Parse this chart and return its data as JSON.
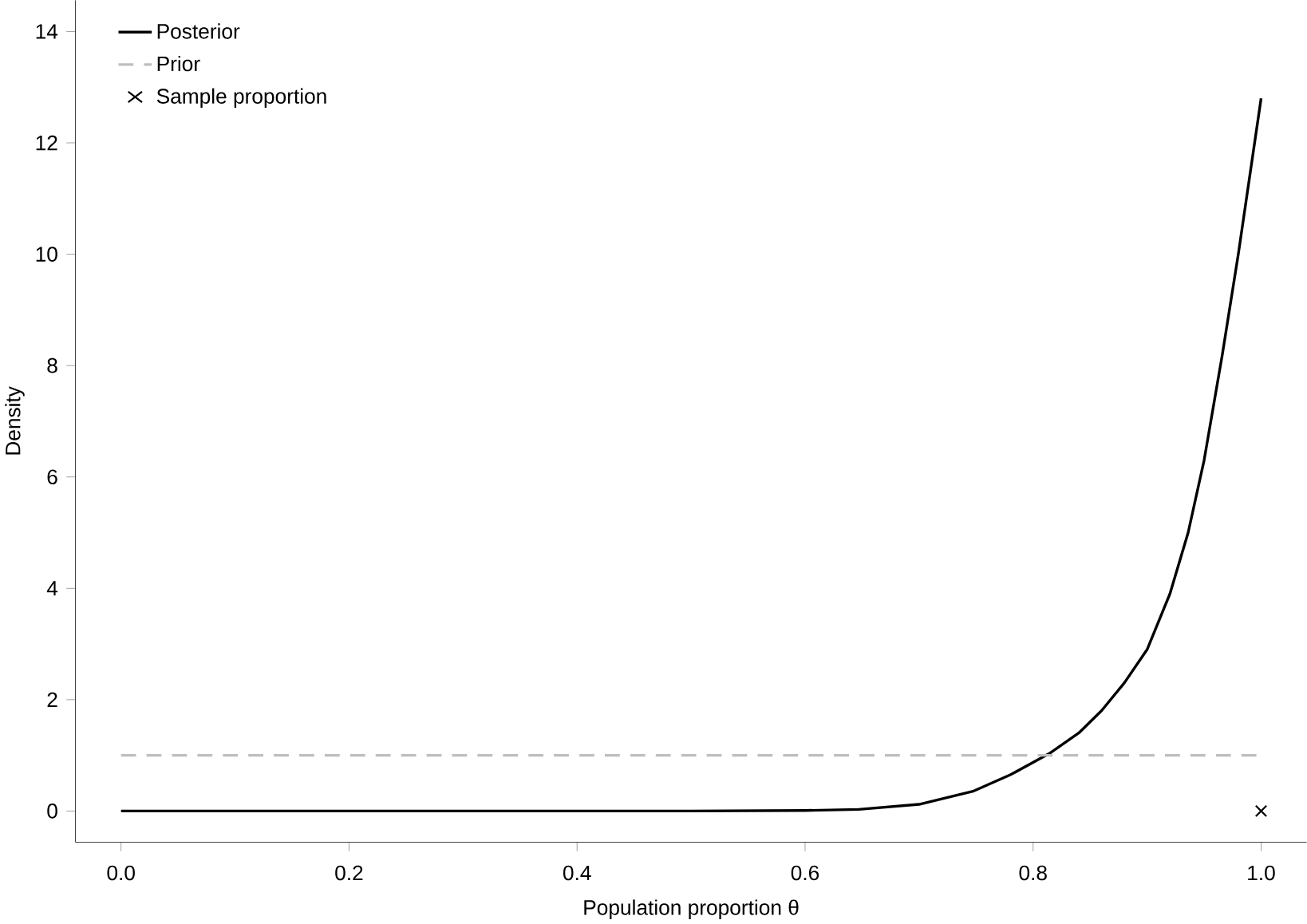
{
  "chart_data": {
    "type": "line",
    "xlabel": "Population proportion θ",
    "ylabel": "Density",
    "xlim": [
      -0.04,
      1.04
    ],
    "ylim": [
      -0.56,
      14.56
    ],
    "xticks": [
      {
        "value": 0,
        "label": "0.0"
      },
      0.2,
      0.4,
      0.6,
      0.8,
      {
        "value": 1,
        "label": "1.0"
      }
    ],
    "yticks": [
      0,
      2,
      4,
      6,
      8,
      10,
      12,
      14
    ],
    "grid": false,
    "legend": "top left",
    "series": [
      {
        "name": "Posterior",
        "color": "#000000",
        "line_style": "solid",
        "marker": "none",
        "x": [
          0,
          0.3,
          0.5,
          0.6,
          0.647,
          0.7,
          0.748,
          0.78,
          0.814,
          0.84,
          0.86,
          0.88,
          0.9,
          0.92,
          0.936,
          0.95,
          0.966,
          0.98,
          1.0
        ],
        "values": [
          0,
          0,
          0,
          0.01,
          0.03,
          0.12,
          0.36,
          0.65,
          1.03,
          1.4,
          1.8,
          2.3,
          2.9,
          3.9,
          5.0,
          6.3,
          8.2,
          10.0,
          12.8
        ]
      },
      {
        "name": "Prior",
        "color": "#bebebe",
        "line_style": "dashed",
        "marker": "none",
        "x": [
          0,
          1
        ],
        "values": [
          1,
          1
        ]
      },
      {
        "name": "Sample proportion",
        "type": "scatter",
        "color": "#000000",
        "marker": "cross",
        "x": [
          1
        ],
        "values": [
          0
        ]
      }
    ]
  }
}
